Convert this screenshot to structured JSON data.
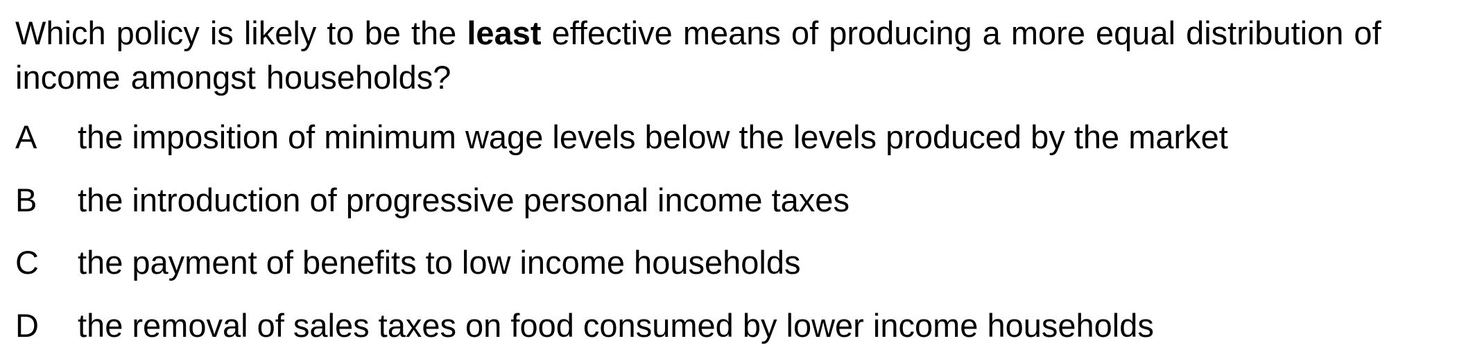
{
  "question": {
    "text_before": "Which policy is likely to be the ",
    "emphasis": "least",
    "text_after": " effective means of producing a more equal distribution of income amongst households?"
  },
  "options": [
    {
      "letter": "A",
      "text": "the imposition of minimum wage levels below the levels produced by the market"
    },
    {
      "letter": "B",
      "text": "the introduction of progressive personal income taxes"
    },
    {
      "letter": "C",
      "text": "the payment of benefits to low income households"
    },
    {
      "letter": "D",
      "text": "the removal of sales taxes on food consumed by lower income households"
    }
  ]
}
